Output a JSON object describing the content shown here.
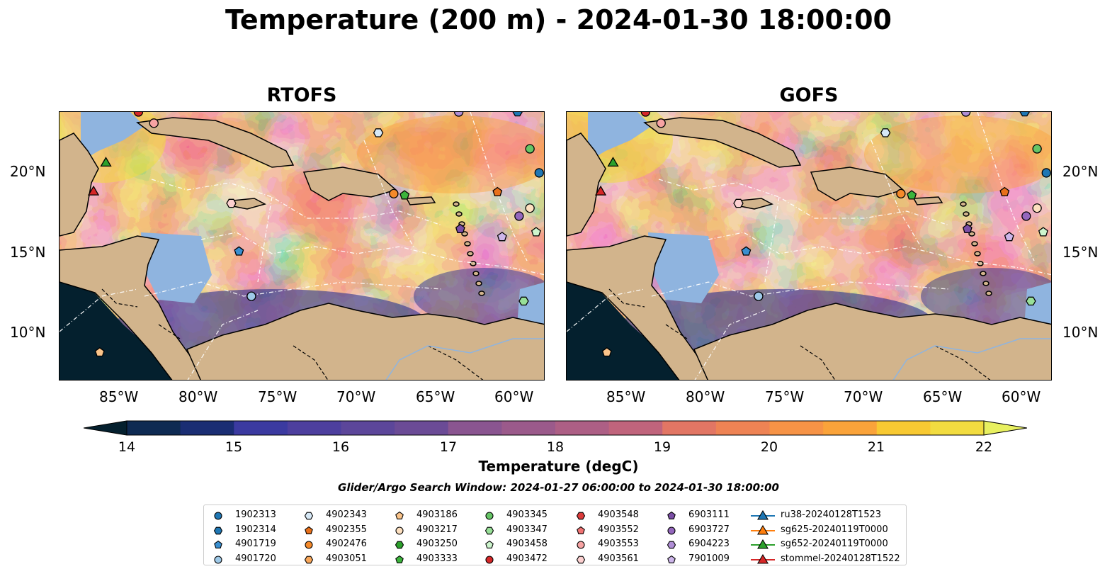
{
  "title": "Temperature (200 m) - 2024-01-30 18:00:00",
  "panels": [
    {
      "title": "RTOFS"
    },
    {
      "title": "GOFS"
    }
  ],
  "axes": {
    "lon_labels": [
      "85°W",
      "80°W",
      "75°W",
      "70°W",
      "65°W",
      "60°W"
    ],
    "lat_labels": [
      "20°N",
      "15°N",
      "10°N"
    ]
  },
  "colorbar": {
    "label": "Temperature (degC)",
    "ticks": [
      "14",
      "15",
      "16",
      "17",
      "18",
      "19",
      "20",
      "21",
      "22"
    ],
    "range": [
      14,
      22
    ],
    "step": 0.5,
    "extend": "both",
    "colormap": "thermal",
    "colors": [
      "#04202e",
      "#0e2a52",
      "#1a2d73",
      "#2c3090",
      "#3b3aa0",
      "#4d3f9e",
      "#5c469a",
      "#6b4b96",
      "#7a5094",
      "#8a5590",
      "#9b5a8b",
      "#ad5f85",
      "#c0647c",
      "#d36b72",
      "#e27664",
      "#ee8354",
      "#f69346",
      "#faa33a",
      "#fbb633",
      "#f8c932",
      "#f2dc40",
      "#e8f060"
    ]
  },
  "search_window": "Glider/Argo Search Window: 2024-01-27 06:00:00 to 2024-01-30 18:00:00",
  "legend": {
    "columns": [
      [
        {
          "label": "1902313",
          "marker": "circle",
          "color": "#1f77b4"
        },
        {
          "label": "1902314",
          "marker": "hexagon",
          "color": "#1f77b4"
        },
        {
          "label": "4901719",
          "marker": "pentagon",
          "color": "#3a8fd0"
        },
        {
          "label": "4901720",
          "marker": "circle",
          "color": "#9ec9e8"
        }
      ],
      [
        {
          "label": "4902343",
          "marker": "hexagon",
          "color": "#d6e8f6"
        },
        {
          "label": "4902355",
          "marker": "pentagon",
          "color": "#e8701a"
        },
        {
          "label": "4902476",
          "marker": "circle",
          "color": "#f58a2a"
        },
        {
          "label": "4903051",
          "marker": "hexagon",
          "color": "#f9a75a"
        }
      ],
      [
        {
          "label": "4903186",
          "marker": "pentagon",
          "color": "#fbc48a"
        },
        {
          "label": "4903217",
          "marker": "circle",
          "color": "#fde0c0"
        },
        {
          "label": "4903250",
          "marker": "hexagon",
          "color": "#2ca02c"
        },
        {
          "label": "4903333",
          "marker": "pentagon",
          "color": "#3cb43c"
        }
      ],
      [
        {
          "label": "4903345",
          "marker": "circle",
          "color": "#66c566"
        },
        {
          "label": "4903347",
          "marker": "hexagon",
          "color": "#98e098"
        },
        {
          "label": "4903458",
          "marker": "pentagon",
          "color": "#cdf5cd"
        },
        {
          "label": "4903472",
          "marker": "circle",
          "color": "#d62728"
        }
      ],
      [
        {
          "label": "4903548",
          "marker": "hexagon",
          "color": "#dc3b3b"
        },
        {
          "label": "4903552",
          "marker": "pentagon",
          "color": "#f07373"
        },
        {
          "label": "4903553",
          "marker": "circle",
          "color": "#f7a3a3"
        },
        {
          "label": "4903561",
          "marker": "hexagon",
          "color": "#fcd0d0"
        }
      ],
      [
        {
          "label": "6903111",
          "marker": "pentagon",
          "color": "#7b4ea6"
        },
        {
          "label": "6903727",
          "marker": "circle",
          "color": "#9467bd"
        },
        {
          "label": "6904223",
          "marker": "hexagon",
          "color": "#b08ed6"
        },
        {
          "label": "7901009",
          "marker": "pentagon",
          "color": "#cdb6ea"
        }
      ],
      [
        {
          "label": "ru38-20240128T1523",
          "marker": "triangle-line",
          "color": "#1f77b4"
        },
        {
          "label": "sg625-20240119T0000",
          "marker": "triangle-line",
          "color": "#ff7f0e"
        },
        {
          "label": "sg652-20240119T0000",
          "marker": "triangle-line",
          "color": "#2ca02c"
        },
        {
          "label": "stommel-20240128T1522",
          "marker": "triangle-line",
          "color": "#d62728"
        }
      ]
    ]
  }
}
